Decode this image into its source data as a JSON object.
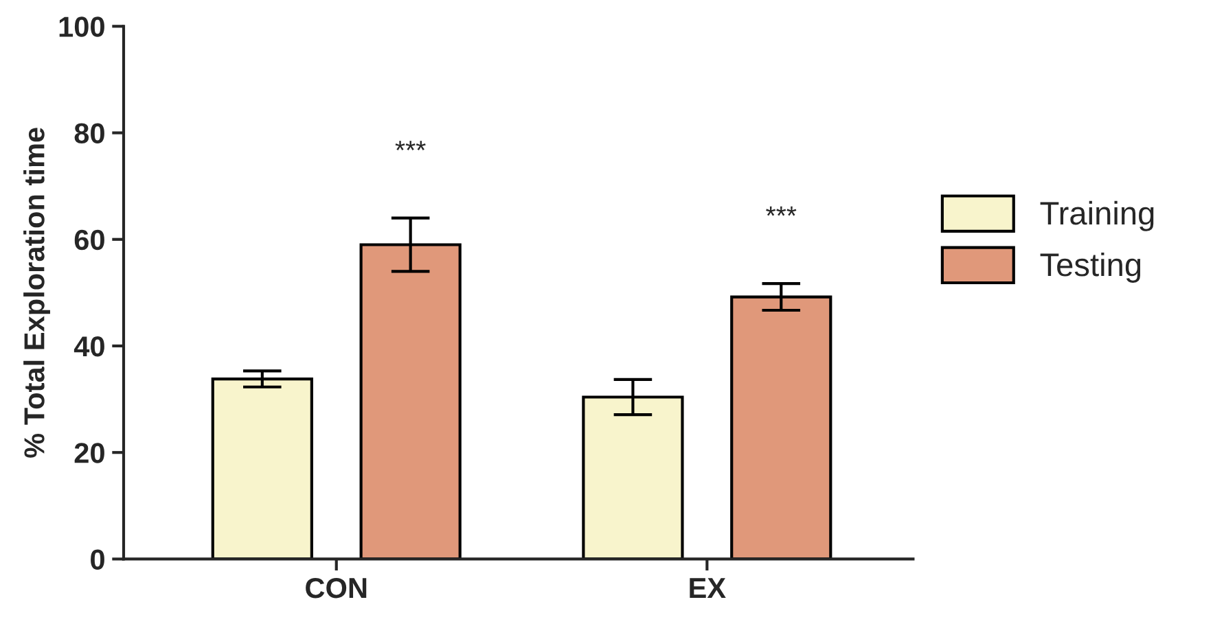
{
  "chart_data": {
    "type": "bar",
    "ylabel": "% Total Exploration time",
    "categories": [
      "CON",
      "EX"
    ],
    "series": [
      {
        "name": "Training",
        "color": "#f8f4cc",
        "values": [
          33.8,
          30.4
        ],
        "errors": [
          1.5,
          3.3
        ]
      },
      {
        "name": "Testing",
        "color": "#e0987a",
        "values": [
          59.0,
          49.2
        ],
        "errors": [
          5.0,
          2.5
        ]
      }
    ],
    "ylim": [
      0,
      100
    ],
    "yticks": [
      0,
      20,
      40,
      60,
      80,
      100
    ],
    "annotations": [
      "***",
      "***"
    ],
    "grid": false,
    "legend": "right"
  }
}
